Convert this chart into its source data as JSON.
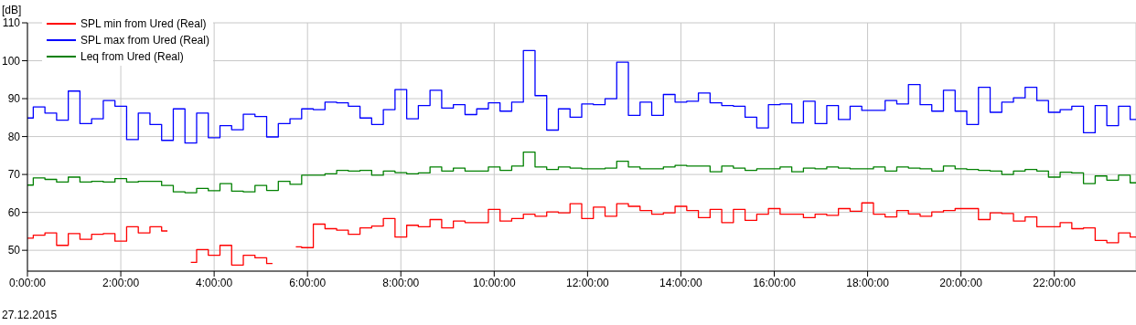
{
  "chart_data": {
    "type": "step",
    "ylabel": "[dB]",
    "x": [
      0,
      0.25,
      0.5,
      0.75,
      1,
      1.25,
      1.5,
      1.75,
      2,
      2.25,
      2.5,
      2.75,
      3,
      3.25,
      3.5,
      3.75,
      4,
      4.25,
      4.5,
      4.75,
      5,
      5.25,
      5.5,
      5.75,
      6,
      6.25,
      6.5,
      6.75,
      7,
      7.25,
      7.5,
      7.75,
      8,
      8.25,
      8.5,
      8.75,
      9,
      9.25,
      9.5,
      9.75,
      10,
      10.25,
      10.5,
      10.75,
      11,
      11.25,
      11.5,
      11.75,
      12,
      12.25,
      12.5,
      12.75,
      13,
      13.25,
      13.5,
      13.75,
      14,
      14.25,
      14.5,
      14.75,
      15,
      15.25,
      15.5,
      15.75,
      16,
      16.25,
      16.5,
      16.75,
      17,
      17.25,
      17.5,
      17.75,
      18,
      18.25,
      18.5,
      18.75,
      19,
      19.25,
      19.5,
      19.75,
      20,
      20.25,
      20.5,
      20.75,
      21,
      21.25,
      21.5,
      21.75,
      22,
      22.25,
      22.5,
      22.75,
      23,
      23.25,
      23.5,
      23.75
    ],
    "series": [
      {
        "name": "SPL min from Ured (Real)",
        "color": "#ff0000",
        "values": [
          53.2,
          54.0,
          54.6,
          51.3,
          54.4,
          52.9,
          54.2,
          54.4,
          52.4,
          56.2,
          54.6,
          56.2,
          55.1,
          null,
          46.8,
          50.2,
          48.7,
          51.3,
          46.1,
          48.7,
          48.0,
          46.5,
          null,
          50.9,
          50.7,
          56.9,
          55.7,
          55.3,
          54.2,
          55.9,
          56.4,
          58.4,
          53.5,
          56.6,
          56.2,
          58.1,
          55.9,
          57.7,
          57.3,
          57.3,
          60.8,
          57.7,
          58.4,
          59.5,
          59.0,
          60.1,
          59.9,
          62.3,
          58.4,
          61.4,
          59.0,
          62.3,
          61.6,
          60.5,
          59.5,
          59.9,
          61.6,
          60.5,
          58.6,
          60.8,
          57.3,
          60.8,
          57.9,
          59.5,
          61.0,
          59.5,
          59.5,
          58.6,
          59.5,
          59.2,
          61.0,
          60.3,
          62.5,
          59.5,
          58.8,
          60.5,
          59.6,
          59.0,
          60.1,
          60.5,
          61.0,
          61.0,
          58.1,
          59.9,
          59.7,
          57.7,
          58.8,
          56.2,
          56.2,
          57.3,
          55.7,
          55.9,
          52.6,
          52.0,
          54.6,
          53.5
        ]
      },
      {
        "name": "SPL max from Ured (Real)",
        "color": "#0000ff",
        "values": [
          84.9,
          87.8,
          86.2,
          84.3,
          92.0,
          83.4,
          84.7,
          89.5,
          88.0,
          79.2,
          86.2,
          83.2,
          79.0,
          87.3,
          78.3,
          86.2,
          79.7,
          82.9,
          81.8,
          85.9,
          85.3,
          79.9,
          83.4,
          84.7,
          87.3,
          87.1,
          89.1,
          88.9,
          88.0,
          84.9,
          83.2,
          87.1,
          92.4,
          84.7,
          88.2,
          92.2,
          87.5,
          88.4,
          85.8,
          87.3,
          88.9,
          86.7,
          89.1,
          102.7,
          90.8,
          81.7,
          87.3,
          85.1,
          88.6,
          88.4,
          90.0,
          99.6,
          85.6,
          89.1,
          85.6,
          91.1,
          89.1,
          89.3,
          91.5,
          88.9,
          88.2,
          88.0,
          85.1,
          82.3,
          88.4,
          88.6,
          83.6,
          89.3,
          83.4,
          88.2,
          84.5,
          88.0,
          86.9,
          86.9,
          89.5,
          88.6,
          93.7,
          88.4,
          86.7,
          92.2,
          86.7,
          83.2,
          93.0,
          86.4,
          89.1,
          90.2,
          93.0,
          89.5,
          86.4,
          87.1,
          88.0,
          81.0,
          88.2,
          82.9,
          88.0,
          84.5
        ]
      },
      {
        "name": "Leq from Ured (Real)",
        "color": "#008000",
        "values": [
          67.2,
          69.1,
          68.7,
          68.0,
          69.3,
          68.0,
          68.2,
          68.0,
          68.9,
          68.0,
          68.2,
          68.2,
          67.1,
          65.4,
          65.2,
          66.3,
          65.7,
          67.6,
          65.6,
          65.4,
          67.1,
          65.8,
          68.2,
          67.4,
          69.8,
          69.8,
          70.2,
          71.1,
          70.9,
          71.1,
          69.8,
          70.9,
          70.5,
          70.2,
          70.4,
          72.0,
          70.9,
          71.7,
          70.9,
          70.9,
          72.0,
          71.1,
          72.2,
          75.9,
          72.0,
          71.3,
          72.0,
          71.7,
          71.5,
          71.5,
          71.7,
          73.5,
          72.0,
          71.5,
          71.5,
          72.0,
          72.4,
          72.2,
          72.2,
          70.7,
          72.2,
          71.7,
          71.1,
          71.5,
          71.5,
          72.0,
          70.7,
          71.7,
          71.5,
          72.0,
          71.7,
          71.5,
          71.5,
          72.0,
          70.9,
          72.0,
          71.7,
          71.5,
          70.9,
          72.2,
          71.5,
          71.3,
          71.1,
          70.9,
          70.0,
          70.9,
          71.3,
          70.9,
          69.3,
          70.6,
          70.4,
          67.6,
          69.6,
          68.5,
          69.8,
          67.8
        ]
      }
    ],
    "xlim": [
      0,
      23.75
    ],
    "xticks": [
      {
        "value": 0,
        "label": "0:00:00"
      },
      {
        "value": 2,
        "label": "2:00:00"
      },
      {
        "value": 4,
        "label": "4:00:00"
      },
      {
        "value": 6,
        "label": "6:00:00"
      },
      {
        "value": 8,
        "label": "8:00:00"
      },
      {
        "value": 10,
        "label": "10:00:00"
      },
      {
        "value": 12,
        "label": "12:00:00"
      },
      {
        "value": 14,
        "label": "14:00:00"
      },
      {
        "value": 16,
        "label": "16:00:00"
      },
      {
        "value": 18,
        "label": "18:00:00"
      },
      {
        "value": 20,
        "label": "20:00:00"
      },
      {
        "value": 22,
        "label": "22:00:00"
      }
    ],
    "ylim": [
      44.5,
      110
    ],
    "yticks": [
      50,
      60,
      70,
      80,
      90,
      100,
      110
    ],
    "grid": true,
    "legend": "top left",
    "annotations": [
      "27.12.2015"
    ]
  }
}
